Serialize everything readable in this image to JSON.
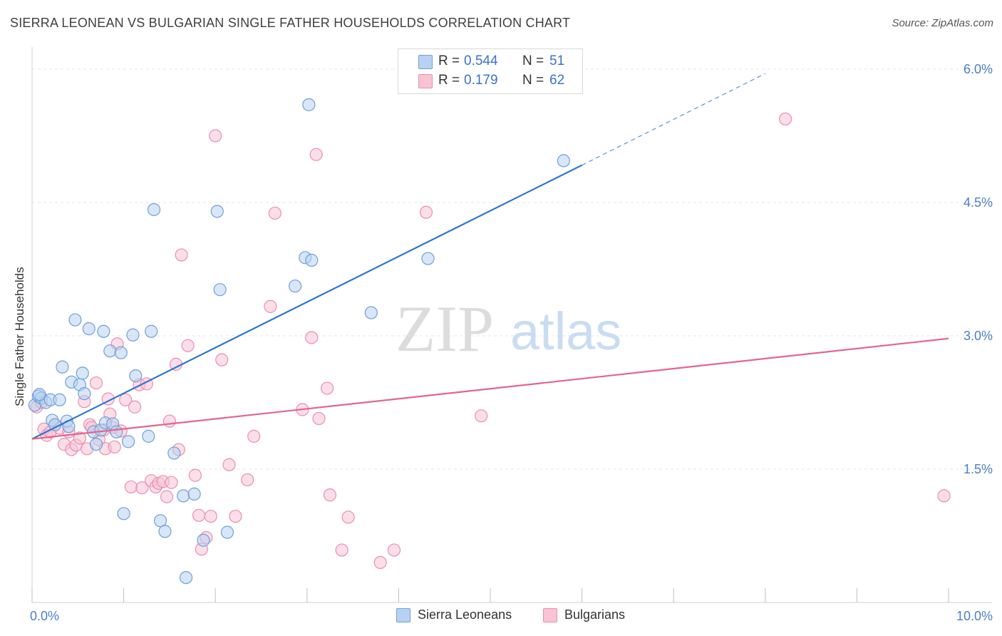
{
  "header": {
    "title": "SIERRA LEONEAN VS BULGARIAN SINGLE FATHER HOUSEHOLDS CORRELATION CHART",
    "source": "Source: ZipAtlas.com"
  },
  "watermark": {
    "zip": "ZIP",
    "atlas": "atlas"
  },
  "legend": {
    "rows": [
      {
        "r_label": "R =",
        "r_value": "0.544",
        "n_label": "N =",
        "n_value": "51"
      },
      {
        "r_label": "R =",
        "r_value": "0.179",
        "n_label": "N =",
        "n_value": "62"
      }
    ],
    "bottom": [
      "Sierra Leoneans",
      "Bulgarians"
    ]
  },
  "colors": {
    "blue_fill": "#b8d1f1",
    "blue_stroke": "#6f9fdc",
    "blue_line": "#2f76d2",
    "pink_fill": "#f8c3d4",
    "pink_stroke": "#e98fae",
    "pink_line": "#e2658f",
    "grid": "#e4e4e4",
    "tick_text": "#4a7fcc"
  },
  "chart_data": {
    "type": "scatter",
    "title": "SIERRA LEONEAN VS BULGARIAN SINGLE FATHER HOUSEHOLDS CORRELATION CHART",
    "xlabel": "",
    "ylabel": "Single Father Households",
    "xlim": [
      0,
      10
    ],
    "ylim": [
      0,
      6.4
    ],
    "x_tick_labels": [
      "0.0%",
      "10.0%"
    ],
    "y_ticks": [
      1.5,
      3.0,
      4.5,
      6.0
    ],
    "y_tick_labels": [
      "1.5%",
      "3.0%",
      "4.5%",
      "6.0%"
    ],
    "grid": true,
    "legend_position": "top-center",
    "series": [
      {
        "name": "Sierra Leoneans",
        "r": 0.544,
        "n": 51,
        "trend": {
          "x0": 0,
          "y0": 1.84,
          "x1": 6.0,
          "y1": 4.92,
          "dashed_to_x": 8.0,
          "dashed_to_y": 5.95
        },
        "points": [
          [
            0.03,
            2.22
          ],
          [
            0.07,
            2.32
          ],
          [
            0.1,
            2.3
          ],
          [
            0.15,
            2.25
          ],
          [
            0.2,
            2.28
          ],
          [
            0.22,
            2.05
          ],
          [
            0.25,
            2.0
          ],
          [
            0.3,
            2.28
          ],
          [
            0.33,
            2.65
          ],
          [
            0.38,
            2.04
          ],
          [
            0.4,
            1.98
          ],
          [
            0.43,
            2.48
          ],
          [
            0.47,
            3.18
          ],
          [
            0.52,
            2.45
          ],
          [
            0.55,
            2.58
          ],
          [
            0.57,
            2.35
          ],
          [
            0.62,
            3.08
          ],
          [
            0.67,
            1.92
          ],
          [
            0.7,
            1.78
          ],
          [
            0.75,
            1.94
          ],
          [
            0.78,
            3.05
          ],
          [
            0.8,
            2.02
          ],
          [
            0.85,
            2.83
          ],
          [
            0.88,
            2.01
          ],
          [
            0.92,
            1.92
          ],
          [
            0.97,
            2.81
          ],
          [
            1.0,
            1.0
          ],
          [
            1.05,
            1.81
          ],
          [
            1.1,
            3.01
          ],
          [
            1.13,
            2.55
          ],
          [
            1.27,
            1.87
          ],
          [
            1.3,
            3.05
          ],
          [
            1.33,
            4.42
          ],
          [
            1.4,
            0.92
          ],
          [
            1.45,
            0.8
          ],
          [
            1.55,
            1.68
          ],
          [
            1.65,
            1.2
          ],
          [
            1.68,
            0.28
          ],
          [
            1.77,
            1.22
          ],
          [
            1.87,
            0.7
          ],
          [
            2.02,
            4.4
          ],
          [
            2.05,
            3.52
          ],
          [
            2.13,
            0.79
          ],
          [
            2.87,
            3.56
          ],
          [
            2.98,
            3.88
          ],
          [
            3.02,
            5.6
          ],
          [
            3.05,
            3.85
          ],
          [
            3.7,
            3.26
          ],
          [
            4.32,
            3.87
          ],
          [
            5.8,
            4.97
          ],
          [
            0.08,
            2.34
          ]
        ]
      },
      {
        "name": "Bulgarians",
        "r": 0.179,
        "n": 62,
        "trend": {
          "x0": 0,
          "y0": 1.84,
          "x1": 10,
          "y1": 2.97
        },
        "points": [
          [
            0.05,
            2.2
          ],
          [
            0.1,
            2.25
          ],
          [
            0.13,
            1.95
          ],
          [
            0.16,
            1.88
          ],
          [
            0.2,
            1.92
          ],
          [
            0.25,
            2.0
          ],
          [
            0.3,
            1.96
          ],
          [
            0.35,
            1.78
          ],
          [
            0.4,
            1.92
          ],
          [
            0.43,
            1.72
          ],
          [
            0.48,
            1.77
          ],
          [
            0.52,
            1.85
          ],
          [
            0.57,
            2.26
          ],
          [
            0.6,
            1.73
          ],
          [
            0.63,
            2.0
          ],
          [
            0.65,
            1.97
          ],
          [
            0.7,
            2.47
          ],
          [
            0.73,
            1.83
          ],
          [
            0.78,
            1.94
          ],
          [
            0.8,
            1.73
          ],
          [
            0.83,
            2.29
          ],
          [
            0.85,
            2.12
          ],
          [
            0.88,
            1.97
          ],
          [
            0.9,
            1.75
          ],
          [
            0.93,
            2.91
          ],
          [
            0.97,
            1.93
          ],
          [
            1.02,
            2.28
          ],
          [
            1.08,
            1.3
          ],
          [
            1.12,
            2.2
          ],
          [
            1.17,
            2.45
          ],
          [
            1.2,
            1.29
          ],
          [
            1.25,
            2.46
          ],
          [
            1.3,
            1.37
          ],
          [
            1.35,
            1.3
          ],
          [
            1.38,
            1.34
          ],
          [
            1.43,
            1.36
          ],
          [
            1.47,
            1.19
          ],
          [
            1.5,
            2.04
          ],
          [
            1.52,
            1.35
          ],
          [
            1.57,
            2.68
          ],
          [
            1.6,
            1.72
          ],
          [
            1.63,
            3.91
          ],
          [
            1.7,
            2.89
          ],
          [
            1.78,
            1.43
          ],
          [
            1.82,
            0.98
          ],
          [
            1.85,
            0.6
          ],
          [
            1.9,
            0.73
          ],
          [
            1.95,
            0.97
          ],
          [
            2.0,
            5.25
          ],
          [
            2.07,
            2.73
          ],
          [
            2.15,
            1.55
          ],
          [
            2.22,
            0.97
          ],
          [
            2.35,
            1.38
          ],
          [
            2.42,
            1.87
          ],
          [
            2.6,
            3.33
          ],
          [
            2.65,
            4.38
          ],
          [
            2.95,
            2.17
          ],
          [
            3.05,
            2.98
          ],
          [
            3.13,
            2.07
          ],
          [
            3.22,
            2.41
          ],
          [
            3.25,
            1.21
          ],
          [
            4.3,
            4.39
          ]
        ]
      },
      {
        "name": "Bulgarians (outer)",
        "points": [
          [
            3.1,
            5.04
          ],
          [
            3.45,
            0.96
          ],
          [
            3.38,
            0.59
          ],
          [
            3.8,
            0.45
          ],
          [
            3.95,
            0.59
          ],
          [
            4.9,
            2.1
          ],
          [
            8.22,
            5.44
          ],
          [
            9.95,
            1.2
          ]
        ]
      }
    ]
  }
}
